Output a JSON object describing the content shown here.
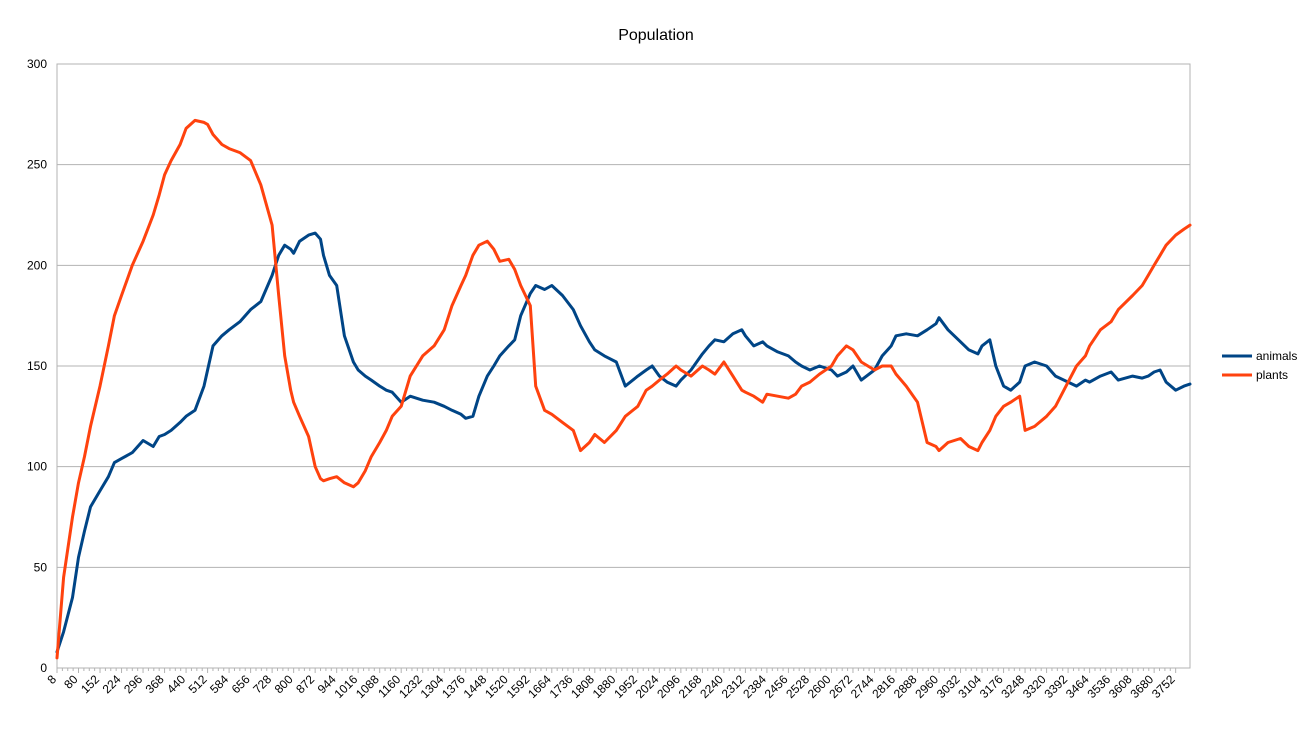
{
  "chart_data": {
    "type": "line",
    "title": "Population",
    "xlabel": "",
    "ylabel": "",
    "ylim": [
      0,
      300
    ],
    "yticks": [
      0,
      50,
      100,
      150,
      200,
      250,
      300
    ],
    "xlim": [
      8,
      3800
    ],
    "xtick_labels": [
      "8",
      "80",
      "152",
      "224",
      "296",
      "368",
      "440",
      "512",
      "584",
      "656",
      "728",
      "800",
      "872",
      "944",
      "1016",
      "1088",
      "1160",
      "1232",
      "1304",
      "1376",
      "1448",
      "1520",
      "1592",
      "1664",
      "1736",
      "1808",
      "1880",
      "1952",
      "2024",
      "2096",
      "2168",
      "2240",
      "2312",
      "2384",
      "2456",
      "2528",
      "2600",
      "2672",
      "2744",
      "2816",
      "2888",
      "2960",
      "3032",
      "3104",
      "3176",
      "3248",
      "3320",
      "3392",
      "3464",
      "3536",
      "3608",
      "3680",
      "3752"
    ],
    "grid": "horizontal",
    "legend_position": "right",
    "series": [
      {
        "name": "animals",
        "color": "#004586",
        "x": [
          8,
          30,
          60,
          80,
          100,
          120,
          152,
          180,
          200,
          224,
          260,
          296,
          330,
          350,
          368,
          390,
          420,
          440,
          470,
          500,
          512,
          530,
          560,
          584,
          620,
          656,
          690,
          728,
          750,
          770,
          790,
          800,
          820,
          850,
          872,
          890,
          900,
          920,
          944,
          970,
          1000,
          1016,
          1040,
          1060,
          1088,
          1110,
          1130,
          1160,
          1190,
          1232,
          1270,
          1304,
          1330,
          1360,
          1376,
          1400,
          1420,
          1448,
          1470,
          1490,
          1520,
          1540,
          1560,
          1592,
          1610,
          1640,
          1664,
          1700,
          1736,
          1760,
          1790,
          1808,
          1840,
          1880,
          1910,
          1952,
          1980,
          2000,
          2024,
          2050,
          2080,
          2096,
          2130,
          2168,
          2190,
          2210,
          2240,
          2270,
          2300,
          2312,
          2340,
          2370,
          2384,
          2420,
          2456,
          2480,
          2500,
          2528,
          2560,
          2600,
          2620,
          2650,
          2672,
          2700,
          2744,
          2770,
          2800,
          2816,
          2850,
          2888,
          2920,
          2950,
          2960,
          2990,
          3032,
          3060,
          3090,
          3104,
          3130,
          3150,
          3176,
          3200,
          3230,
          3248,
          3280,
          3320,
          3350,
          3392,
          3420,
          3450,
          3464,
          3500,
          3536,
          3560,
          3608,
          3640,
          3660,
          3680,
          3700,
          3720,
          3752,
          3780,
          3800
        ],
        "values": [
          8,
          18,
          35,
          55,
          68,
          80,
          88,
          95,
          102,
          104,
          107,
          113,
          110,
          115,
          116,
          118,
          122,
          125,
          128,
          140,
          148,
          160,
          165,
          168,
          172,
          178,
          182,
          195,
          205,
          210,
          208,
          206,
          212,
          215,
          216,
          213,
          205,
          195,
          190,
          165,
          152,
          148,
          145,
          143,
          140,
          138,
          137,
          132,
          135,
          133,
          132,
          130,
          128,
          126,
          124,
          125,
          135,
          145,
          150,
          155,
          160,
          163,
          175,
          186,
          190,
          188,
          190,
          185,
          178,
          170,
          162,
          158,
          155,
          152,
          140,
          145,
          148,
          150,
          145,
          142,
          140,
          143,
          148,
          156,
          160,
          163,
          162,
          166,
          168,
          165,
          160,
          162,
          160,
          157,
          155,
          152,
          150,
          148,
          150,
          148,
          145,
          147,
          150,
          143,
          148,
          155,
          160,
          165,
          166,
          165,
          168,
          171,
          174,
          168,
          162,
          158,
          156,
          160,
          163,
          150,
          140,
          138,
          142,
          150,
          152,
          150,
          145,
          142,
          140,
          143,
          142,
          145,
          147,
          143,
          145,
          144,
          145,
          147,
          148,
          142,
          138,
          140,
          141
        ]
      },
      {
        "name": "plants",
        "color": "#ff420e",
        "x": [
          8,
          30,
          60,
          80,
          100,
          120,
          152,
          180,
          200,
          224,
          260,
          296,
          330,
          350,
          368,
          390,
          420,
          440,
          470,
          500,
          512,
          530,
          560,
          584,
          620,
          656,
          690,
          728,
          750,
          770,
          790,
          800,
          820,
          850,
          872,
          890,
          900,
          920,
          944,
          970,
          1000,
          1016,
          1040,
          1060,
          1088,
          1110,
          1130,
          1160,
          1190,
          1232,
          1270,
          1304,
          1330,
          1360,
          1376,
          1400,
          1420,
          1448,
          1470,
          1490,
          1520,
          1540,
          1560,
          1592,
          1610,
          1640,
          1664,
          1700,
          1736,
          1760,
          1790,
          1808,
          1840,
          1880,
          1910,
          1952,
          1980,
          2000,
          2024,
          2050,
          2080,
          2096,
          2130,
          2168,
          2190,
          2210,
          2240,
          2270,
          2300,
          2312,
          2340,
          2370,
          2384,
          2420,
          2456,
          2480,
          2500,
          2528,
          2560,
          2600,
          2620,
          2650,
          2672,
          2700,
          2744,
          2770,
          2800,
          2816,
          2850,
          2888,
          2920,
          2950,
          2960,
          2990,
          3032,
          3060,
          3090,
          3104,
          3130,
          3150,
          3176,
          3200,
          3230,
          3248,
          3280,
          3320,
          3350,
          3392,
          3420,
          3450,
          3464,
          3500,
          3536,
          3560,
          3608,
          3640,
          3660,
          3680,
          3700,
          3720,
          3752,
          3780,
          3800
        ],
        "values": [
          5,
          45,
          75,
          92,
          105,
          120,
          140,
          160,
          175,
          185,
          200,
          212,
          225,
          235,
          245,
          252,
          260,
          268,
          272,
          271,
          270,
          265,
          260,
          258,
          256,
          252,
          240,
          220,
          185,
          155,
          138,
          132,
          125,
          115,
          100,
          94,
          93,
          94,
          95,
          92,
          90,
          92,
          98,
          105,
          112,
          118,
          125,
          130,
          145,
          155,
          160,
          168,
          180,
          190,
          195,
          205,
          210,
          212,
          208,
          202,
          203,
          198,
          190,
          180,
          140,
          128,
          126,
          122,
          118,
          108,
          112,
          116,
          112,
          118,
          125,
          130,
          138,
          140,
          143,
          146,
          150,
          148,
          145,
          150,
          148,
          146,
          152,
          145,
          138,
          137,
          135,
          132,
          136,
          135,
          134,
          136,
          140,
          142,
          146,
          150,
          155,
          160,
          158,
          152,
          148,
          150,
          150,
          146,
          140,
          132,
          112,
          110,
          108,
          112,
          114,
          110,
          108,
          112,
          118,
          125,
          130,
          132,
          135,
          118,
          120,
          125,
          130,
          142,
          150,
          155,
          160,
          168,
          172,
          178,
          185,
          190,
          195,
          200,
          205,
          210,
          215,
          218,
          220
        ]
      }
    ]
  }
}
